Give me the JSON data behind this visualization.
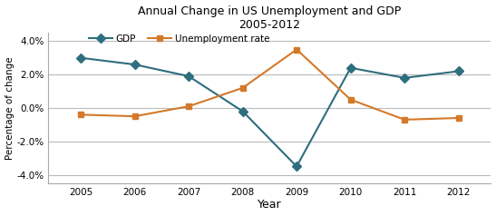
{
  "years": [
    2005,
    2006,
    2007,
    2008,
    2009,
    2010,
    2011,
    2012
  ],
  "gdp": [
    3.0,
    2.6,
    1.9,
    -0.2,
    -3.5,
    2.4,
    1.8,
    2.2
  ],
  "unemployment": [
    -0.4,
    -0.5,
    0.1,
    1.2,
    3.5,
    0.5,
    -0.7,
    -0.6
  ],
  "gdp_color": "#2e6e7e",
  "unemployment_color": "#d4792a",
  "title_line1": "Annual Change in US Unemployment and GDP",
  "title_line2": "2005-2012",
  "xlabel": "Year",
  "ylabel": "Percentage of change",
  "ylim": [
    -4.5,
    4.5
  ],
  "yticks": [
    -4.0,
    -2.0,
    0.0,
    2.0,
    4.0
  ],
  "gdp_label": "GDP",
  "unemp_label": "Unemployment rate",
  "background_color": "#ffffff",
  "grid_color": "#bbbbbb"
}
